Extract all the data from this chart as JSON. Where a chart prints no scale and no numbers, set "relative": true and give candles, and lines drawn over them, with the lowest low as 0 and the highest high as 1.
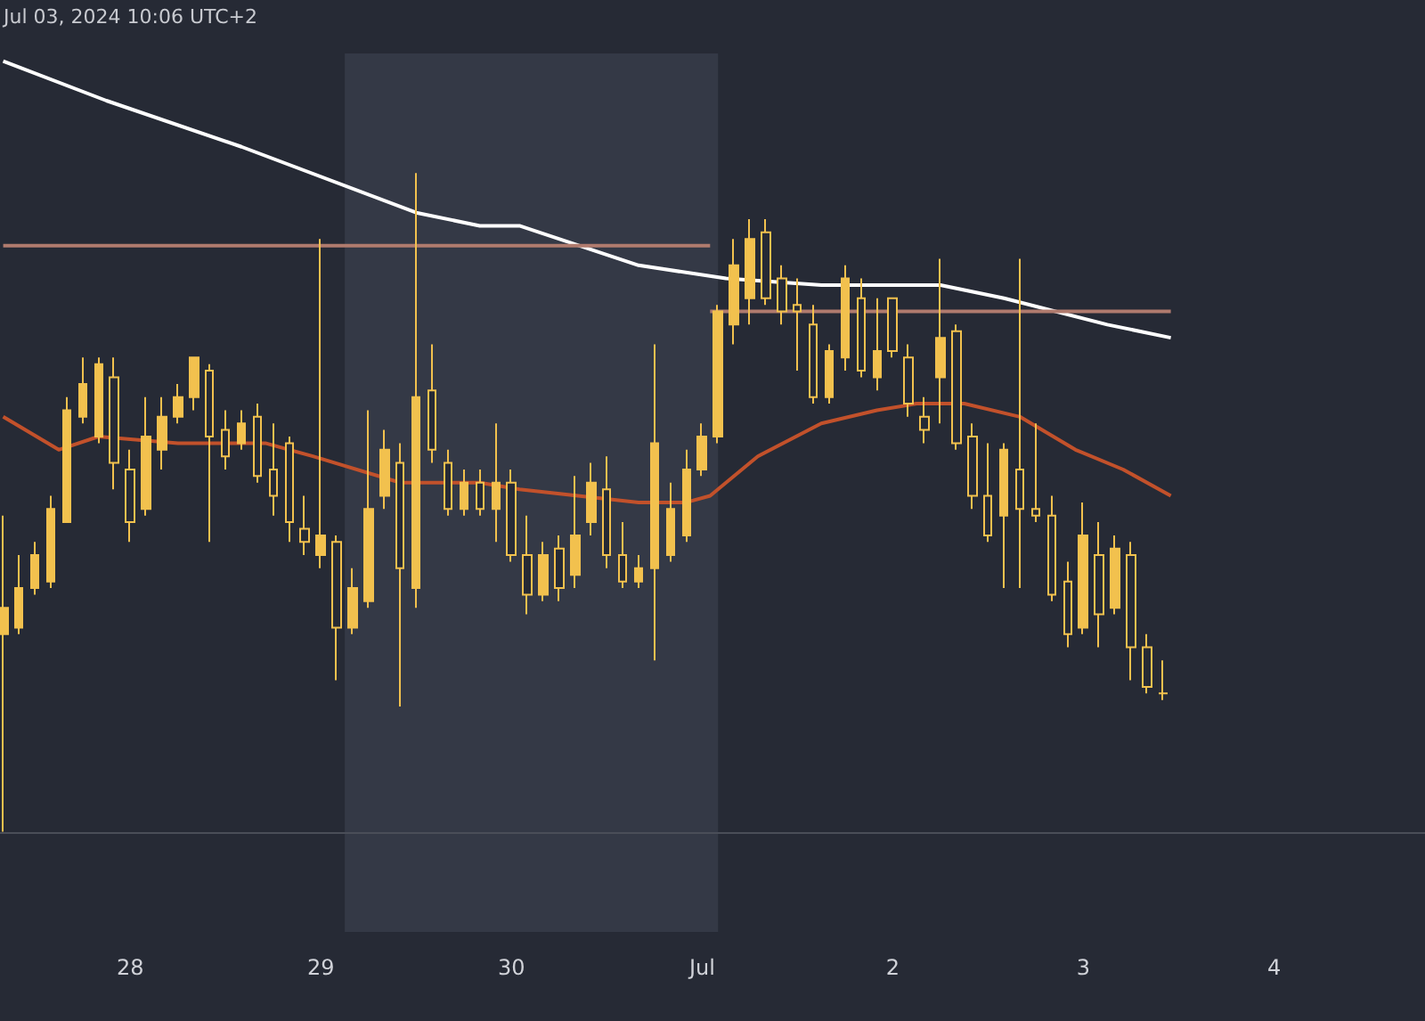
{
  "chart_data": {
    "type": "candlestick",
    "relative": true,
    "color": "#f2c14e",
    "grid": false,
    "marker": "none",
    "annotations": [
      "Jul 03, 2024 10:06 UTC+2"
    ],
    "xlim": [
      "2024-06-27T07:36",
      "2024-07-04T19:00"
    ],
    "xticks": [
      {
        "value": "2024-06-28",
        "label": "28"
      },
      {
        "value": "2024-06-29",
        "label": "29"
      },
      {
        "value": "2024-06-30",
        "label": "30"
      },
      {
        "value": "2024-07-01",
        "label": "Jul"
      },
      {
        "value": "2024-07-02",
        "label": "2"
      },
      {
        "value": "2024-07-03",
        "label": "3"
      },
      {
        "value": "2024-07-04",
        "label": "4"
      }
    ],
    "bands": [
      {
        "axis": "x",
        "from": "2024-06-29T03:00",
        "to": "2024-07-01T02:00",
        "color": "#343946"
      }
    ],
    "x": [
      "2024-06-27T08:00",
      "2024-06-27T10:00",
      "2024-06-27T12:00",
      "2024-06-27T14:00",
      "2024-06-27T16:00",
      "2024-06-27T18:00",
      "2024-06-27T20:00",
      "2024-06-27T22:00",
      "2024-06-28T00:00",
      "2024-06-28T02:00",
      "2024-06-28T04:00",
      "2024-06-28T06:00",
      "2024-06-28T08:00",
      "2024-06-28T10:00",
      "2024-06-28T12:00",
      "2024-06-28T14:00",
      "2024-06-28T16:00",
      "2024-06-28T18:00",
      "2024-06-28T20:00",
      "2024-06-28T22:00",
      "2024-06-29T00:00",
      "2024-06-29T02:00",
      "2024-06-29T04:00",
      "2024-06-29T06:00",
      "2024-06-29T08:00",
      "2024-06-29T10:00",
      "2024-06-29T12:00",
      "2024-06-29T14:00",
      "2024-06-29T16:00",
      "2024-06-29T18:00",
      "2024-06-29T20:00",
      "2024-06-29T22:00",
      "2024-06-30T00:00",
      "2024-06-30T02:00",
      "2024-06-30T04:00",
      "2024-06-30T06:00",
      "2024-06-30T08:00",
      "2024-06-30T10:00",
      "2024-06-30T12:00",
      "2024-06-30T14:00",
      "2024-06-30T16:00",
      "2024-06-30T18:00",
      "2024-06-30T20:00",
      "2024-06-30T22:00",
      "2024-07-01T00:00",
      "2024-07-01T02:00",
      "2024-07-01T04:00",
      "2024-07-01T06:00",
      "2024-07-01T08:00",
      "2024-07-01T10:00",
      "2024-07-01T12:00",
      "2024-07-01T14:00",
      "2024-07-01T16:00",
      "2024-07-01T18:00",
      "2024-07-01T20:00",
      "2024-07-01T22:00",
      "2024-07-02T00:00",
      "2024-07-02T02:00",
      "2024-07-02T04:00",
      "2024-07-02T06:00",
      "2024-07-02T08:00",
      "2024-07-02T10:00",
      "2024-07-02T12:00",
      "2024-07-02T14:00",
      "2024-07-02T16:00",
      "2024-07-02T18:00",
      "2024-07-02T20:00",
      "2024-07-02T22:00",
      "2024-07-03T00:00",
      "2024-07-03T02:00",
      "2024-07-03T04:00",
      "2024-07-03T06:00",
      "2024-07-03T08:00",
      "2024-07-03T10:00"
    ],
    "ohlc": [
      [
        0.3,
        0.48,
        0,
        0.34
      ],
      [
        0.31,
        0.42,
        0.3,
        0.37
      ],
      [
        0.37,
        0.44,
        0.36,
        0.42
      ],
      [
        0.38,
        0.51,
        0.37,
        0.49
      ],
      [
        0.47,
        0.66,
        0.47,
        0.64
      ],
      [
        0.63,
        0.72,
        0.62,
        0.68
      ],
      [
        0.6,
        0.72,
        0.59,
        0.71
      ],
      [
        0.69,
        0.72,
        0.52,
        0.56
      ],
      [
        0.55,
        0.58,
        0.44,
        0.47
      ],
      [
        0.49,
        0.66,
        0.48,
        0.6
      ],
      [
        0.58,
        0.66,
        0.55,
        0.63
      ],
      [
        0.63,
        0.68,
        0.62,
        0.66
      ],
      [
        0.66,
        0.72,
        0.64,
        0.72
      ],
      [
        0.7,
        0.71,
        0.44,
        0.6
      ],
      [
        0.61,
        0.64,
        0.55,
        0.57
      ],
      [
        0.59,
        0.64,
        0.58,
        0.62
      ],
      [
        0.63,
        0.65,
        0.53,
        0.54
      ],
      [
        0.55,
        0.62,
        0.48,
        0.51
      ],
      [
        0.59,
        0.6,
        0.44,
        0.47
      ],
      [
        0.46,
        0.51,
        0.42,
        0.44
      ],
      [
        0.42,
        0.9,
        0.4,
        0.45
      ],
      [
        0.44,
        0.45,
        0.23,
        0.31
      ],
      [
        0.31,
        0.4,
        0.3,
        0.37
      ],
      [
        0.35,
        0.64,
        0.34,
        0.49
      ],
      [
        0.51,
        0.61,
        0.49,
        0.58
      ],
      [
        0.56,
        0.59,
        0.19,
        0.4
      ],
      [
        0.37,
        1.0,
        0.34,
        0.66
      ],
      [
        0.67,
        0.74,
        0.56,
        0.58
      ],
      [
        0.56,
        0.58,
        0.48,
        0.49
      ],
      [
        0.49,
        0.55,
        0.48,
        0.53
      ],
      [
        0.53,
        0.55,
        0.48,
        0.49
      ],
      [
        0.49,
        0.62,
        0.44,
        0.53
      ],
      [
        0.53,
        0.55,
        0.41,
        0.42
      ],
      [
        0.42,
        0.48,
        0.33,
        0.36
      ],
      [
        0.36,
        0.44,
        0.35,
        0.42
      ],
      [
        0.43,
        0.45,
        0.35,
        0.37
      ],
      [
        0.39,
        0.54,
        0.37,
        0.45
      ],
      [
        0.47,
        0.56,
        0.45,
        0.53
      ],
      [
        0.52,
        0.57,
        0.4,
        0.42
      ],
      [
        0.42,
        0.47,
        0.37,
        0.38
      ],
      [
        0.38,
        0.42,
        0.37,
        0.4
      ],
      [
        0.4,
        0.74,
        0.26,
        0.59
      ],
      [
        0.42,
        0.53,
        0.41,
        0.49
      ],
      [
        0.45,
        0.58,
        0.44,
        0.55
      ],
      [
        0.55,
        0.62,
        0.54,
        0.6
      ],
      [
        0.6,
        0.8,
        0.59,
        0.79
      ],
      [
        0.77,
        0.9,
        0.74,
        0.86
      ],
      [
        0.81,
        0.93,
        0.77,
        0.9
      ],
      [
        0.91,
        0.93,
        0.8,
        0.81
      ],
      [
        0.84,
        0.86,
        0.77,
        0.79
      ],
      [
        0.8,
        0.84,
        0.7,
        0.79
      ],
      [
        0.77,
        0.8,
        0.65,
        0.66
      ],
      [
        0.66,
        0.74,
        0.65,
        0.73
      ],
      [
        0.72,
        0.86,
        0.7,
        0.84
      ],
      [
        0.81,
        0.84,
        0.69,
        0.7
      ],
      [
        0.69,
        0.81,
        0.67,
        0.73
      ],
      [
        0.81,
        0.81,
        0.72,
        0.73
      ],
      [
        0.72,
        0.74,
        0.63,
        0.65
      ],
      [
        0.63,
        0.66,
        0.59,
        0.61
      ],
      [
        0.69,
        0.87,
        0.62,
        0.75
      ],
      [
        0.76,
        0.77,
        0.58,
        0.59
      ],
      [
        0.6,
        0.62,
        0.49,
        0.51
      ],
      [
        0.51,
        0.59,
        0.44,
        0.45
      ],
      [
        0.48,
        0.59,
        0.37,
        0.58
      ],
      [
        0.55,
        0.87,
        0.37,
        0.49
      ],
      [
        0.49,
        0.62,
        0.47,
        0.48
      ],
      [
        0.48,
        0.51,
        0.35,
        0.36
      ],
      [
        0.38,
        0.41,
        0.28,
        0.3
      ],
      [
        0.31,
        0.5,
        0.3,
        0.45
      ],
      [
        0.42,
        0.47,
        0.28,
        0.33
      ],
      [
        0.34,
        0.45,
        0.33,
        0.43
      ],
      [
        0.42,
        0.44,
        0.23,
        0.28
      ],
      [
        0.28,
        0.3,
        0.21,
        0.22
      ],
      [
        0.21,
        0.26,
        0.2,
        0.21
      ]
    ],
    "series": [
      {
        "type": "line",
        "color": "#ffffff",
        "x": [
          "2024-06-27T08:00",
          "2024-06-27T21:00",
          "2024-06-28T14:00",
          "2024-06-29T12:00",
          "2024-06-29T20:00",
          "2024-06-30T01:00",
          "2024-06-30T16:00",
          "2024-07-01T03:00",
          "2024-07-01T15:00",
          "2024-07-02T06:00",
          "2024-07-02T14:00",
          "2024-07-03T03:00",
          "2024-07-03T11:00"
        ],
        "values": [
          1.17,
          1.11,
          1.04,
          0.94,
          0.92,
          0.92,
          0.86,
          0.84,
          0.83,
          0.83,
          0.81,
          0.77,
          0.75
        ]
      },
      {
        "type": "line",
        "color": "#c2512b",
        "x": [
          "2024-06-27T08:00",
          "2024-06-27T15:00",
          "2024-06-27T20:00",
          "2024-06-28T06:00",
          "2024-06-28T17:00",
          "2024-06-28T23:00",
          "2024-06-29T10:00",
          "2024-06-29T20:00",
          "2024-06-30T01:00",
          "2024-06-30T16:00",
          "2024-06-30T22:00",
          "2024-07-01T01:00",
          "2024-07-01T07:00",
          "2024-07-01T15:00",
          "2024-07-01T22:00",
          "2024-07-02T03:00",
          "2024-07-02T09:00",
          "2024-07-02T16:00",
          "2024-07-02T23:00",
          "2024-07-03T05:00",
          "2024-07-03T11:00"
        ],
        "values": [
          0.63,
          0.58,
          0.6,
          0.59,
          0.59,
          0.57,
          0.53,
          0.53,
          0.52,
          0.5,
          0.5,
          0.51,
          0.57,
          0.62,
          0.64,
          0.65,
          0.65,
          0.63,
          0.58,
          0.55,
          0.51
        ]
      },
      {
        "type": "line",
        "color": "#b07b6e",
        "x": [
          "2024-06-27T08:00",
          "2024-07-01T01:00"
        ],
        "values": [
          0.89,
          0.89
        ]
      },
      {
        "type": "line",
        "color": "#b07b6e",
        "x": [
          "2024-07-01T01:00",
          "2024-07-03T11:00"
        ],
        "values": [
          0.79,
          0.79
        ]
      }
    ]
  }
}
